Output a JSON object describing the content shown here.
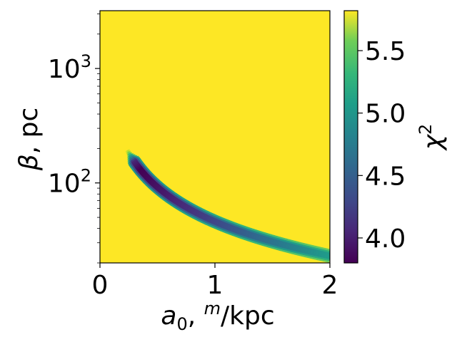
{
  "chart_data": {
    "type": "heatmap",
    "xlabel_parts": {
      "main": "a",
      "sub": "0",
      "comma": ", ",
      "sup": "m",
      "tail": "/kpc"
    },
    "ylabel_parts": {
      "main": "β",
      "tail": ", pc"
    },
    "colorbar_label_parts": {
      "main": "χ",
      "sup": "2"
    },
    "x_scale": "linear",
    "y_scale": "log",
    "xlim": [
      0,
      2
    ],
    "ylim": [
      20,
      3200
    ],
    "x_ticks": [
      {
        "value": 0,
        "label": "0"
      },
      {
        "value": 1,
        "label": "1"
      },
      {
        "value": 2,
        "label": "2"
      }
    ],
    "y_ticks": [
      {
        "value": 100,
        "base": "10",
        "exp": "2"
      },
      {
        "value": 1000,
        "base": "10",
        "exp": "3"
      }
    ],
    "colorbar": {
      "colormap": "viridis",
      "range": [
        3.8,
        5.82
      ],
      "ticks": [
        {
          "value": 4.0,
          "label": "4.0"
        },
        {
          "value": 4.5,
          "label": "4.5"
        },
        {
          "value": 5.0,
          "label": "5.0"
        },
        {
          "value": 5.5,
          "label": "5.5"
        }
      ]
    },
    "background_value": 5.82,
    "valley": {
      "relation": "beta = 46 * a0^(-1)",
      "constant": 46,
      "exponent": -1,
      "a0_start": 0.23,
      "a0_end": 2.0,
      "min_value": 3.8,
      "min_at_a0": 0.35
    },
    "grid": false
  }
}
